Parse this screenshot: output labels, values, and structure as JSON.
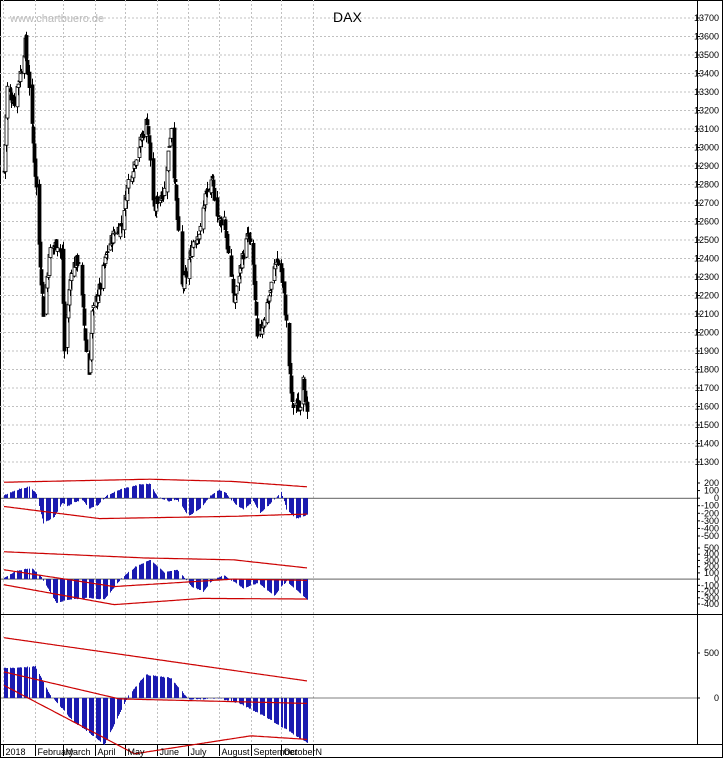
{
  "watermark": "www.chartbuero.de",
  "colors": {
    "background": "#ffffff",
    "candle": "#000000",
    "histogram": "#1a1ab0",
    "bands": "#cc0000",
    "grid": "#c0c0c0"
  },
  "chart_data": [
    {
      "type": "candlestick",
      "title": "DAX",
      "ylim": [
        11300,
        13700
      ],
      "grid": true,
      "yticks": [
        "13700",
        "13600",
        "13500",
        "13400",
        "13300",
        "13200",
        "13100",
        "13000",
        "12900",
        "12800",
        "12700",
        "12600",
        "12500",
        "12400",
        "12300",
        "12200",
        "12100",
        "12000",
        "11900",
        "11800",
        "11700",
        "11600",
        "11500",
        "11400",
        "11300"
      ],
      "x_month_labels": [
        "2018",
        "February",
        "March",
        "April",
        "May",
        "June",
        "July",
        "August",
        "September",
        "October",
        "N"
      ],
      "weekly_close_path": [
        [
          "2018-01-02",
          12870
        ],
        [
          "2018-01-05",
          13320
        ],
        [
          "2018-01-12",
          13250
        ],
        [
          "2018-01-19",
          13430
        ],
        [
          "2018-01-23",
          13560
        ],
        [
          "2018-01-26",
          13340
        ],
        [
          "2018-02-02",
          12780
        ],
        [
          "2018-02-06",
          12380
        ],
        [
          "2018-02-09",
          12110
        ],
        [
          "2018-02-16",
          12450
        ],
        [
          "2018-02-23",
          12480
        ],
        [
          "2018-02-28",
          12420
        ],
        [
          "2018-03-02",
          11900
        ],
        [
          "2018-03-09",
          12350
        ],
        [
          "2018-03-16",
          12390
        ],
        [
          "2018-03-23",
          11900
        ],
        [
          "2018-03-26",
          11780
        ],
        [
          "2018-03-29",
          12100
        ],
        [
          "2018-04-06",
          12250
        ],
        [
          "2018-04-13",
          12440
        ],
        [
          "2018-04-20",
          12540
        ],
        [
          "2018-04-27",
          12580
        ],
        [
          "2018-05-04",
          12820
        ],
        [
          "2018-05-11",
          12960
        ],
        [
          "2018-05-18",
          13080
        ],
        [
          "2018-05-22",
          13150
        ],
        [
          "2018-05-29",
          12650
        ],
        [
          "2018-06-01",
          12720
        ],
        [
          "2018-06-08",
          12770
        ],
        [
          "2018-06-15",
          13120
        ],
        [
          "2018-06-20",
          12700
        ],
        [
          "2018-06-25",
          12250
        ],
        [
          "2018-06-29",
          12310
        ],
        [
          "2018-07-06",
          12500
        ],
        [
          "2018-07-13",
          12550
        ],
        [
          "2018-07-18",
          12740
        ],
        [
          "2018-07-25",
          12800
        ],
        [
          "2018-08-01",
          12600
        ],
        [
          "2018-08-06",
          12620
        ],
        [
          "2018-08-10",
          12420
        ],
        [
          "2018-08-15",
          12170
        ],
        [
          "2018-08-22",
          12380
        ],
        [
          "2018-08-29",
          12530
        ],
        [
          "2018-09-03",
          12360
        ],
        [
          "2018-09-07",
          11960
        ],
        [
          "2018-09-12",
          12040
        ],
        [
          "2018-09-19",
          12200
        ],
        [
          "2018-09-26",
          12400
        ],
        [
          "2018-10-01",
          12330
        ],
        [
          "2018-10-05",
          12050
        ],
        [
          "2018-10-11",
          11600
        ],
        [
          "2018-10-15",
          11620
        ],
        [
          "2018-10-18",
          11580
        ],
        [
          "2018-10-22",
          11780
        ],
        [
          "2018-10-26",
          11540
        ]
      ]
    },
    {
      "type": "histogram",
      "ylim": [
        -500,
        200
      ],
      "yticks": [
        "200",
        "100",
        "0",
        "-100",
        "-200",
        "-300",
        "-400",
        "-500"
      ],
      "histogram_path": [
        [
          "2018-01-02",
          40
        ],
        [
          "2018-01-17",
          120
        ],
        [
          "2018-01-26",
          150
        ],
        [
          "2018-02-02",
          60
        ],
        [
          "2018-02-09",
          -330
        ],
        [
          "2018-02-20",
          -250
        ],
        [
          "2018-02-28",
          -60
        ],
        [
          "2018-03-05",
          -110
        ],
        [
          "2018-03-12",
          -50
        ],
        [
          "2018-03-20",
          -30
        ],
        [
          "2018-03-26",
          -140
        ],
        [
          "2018-04-04",
          -90
        ],
        [
          "2018-04-13",
          40
        ],
        [
          "2018-04-27",
          120
        ],
        [
          "2018-05-14",
          180
        ],
        [
          "2018-05-25",
          190
        ],
        [
          "2018-06-01",
          20
        ],
        [
          "2018-06-12",
          -40
        ],
        [
          "2018-06-21",
          -20
        ],
        [
          "2018-07-01",
          -240
        ],
        [
          "2018-07-13",
          -140
        ],
        [
          "2018-07-23",
          30
        ],
        [
          "2018-08-01",
          110
        ],
        [
          "2018-08-07",
          80
        ],
        [
          "2018-08-16",
          -80
        ],
        [
          "2018-08-24",
          -150
        ],
        [
          "2018-09-03",
          -40
        ],
        [
          "2018-09-10",
          -200
        ],
        [
          "2018-09-21",
          -60
        ],
        [
          "2018-10-01",
          80
        ],
        [
          "2018-10-05",
          -150
        ],
        [
          "2018-10-15",
          -270
        ],
        [
          "2018-10-26",
          -220
        ]
      ],
      "upper_band": [
        [
          "2018-01-02",
          210
        ],
        [
          "2018-05-25",
          250
        ],
        [
          "2018-08-15",
          220
        ],
        [
          "2018-10-26",
          150
        ]
      ],
      "lower_band": [
        [
          "2018-01-02",
          -110
        ],
        [
          "2018-04-06",
          -270
        ],
        [
          "2018-08-15",
          -240
        ],
        [
          "2018-10-26",
          -210
        ]
      ]
    },
    {
      "type": "histogram",
      "ylim": [
        -400,
        500
      ],
      "yticks": [
        "500",
        "400",
        "300",
        "200",
        "100",
        "0",
        "-100",
        "-200",
        "-300",
        "-400"
      ],
      "histogram_path": [
        [
          "2018-01-02",
          20
        ],
        [
          "2018-01-14",
          130
        ],
        [
          "2018-01-28",
          180
        ],
        [
          "2018-02-06",
          60
        ],
        [
          "2018-02-22",
          -380
        ],
        [
          "2018-03-06",
          -330
        ],
        [
          "2018-03-26",
          -300
        ],
        [
          "2018-04-10",
          -330
        ],
        [
          "2018-04-27",
          10
        ],
        [
          "2018-05-10",
          200
        ],
        [
          "2018-05-25",
          310
        ],
        [
          "2018-06-08",
          110
        ],
        [
          "2018-06-21",
          150
        ],
        [
          "2018-07-04",
          -120
        ],
        [
          "2018-07-16",
          -200
        ],
        [
          "2018-07-26",
          0
        ],
        [
          "2018-08-06",
          60
        ],
        [
          "2018-08-24",
          -150
        ],
        [
          "2018-09-08",
          -60
        ],
        [
          "2018-09-24",
          -270
        ],
        [
          "2018-10-05",
          -40
        ],
        [
          "2018-10-15",
          -170
        ],
        [
          "2018-10-26",
          -330
        ]
      ],
      "upper_band": [
        [
          "2018-01-02",
          440
        ],
        [
          "2018-05-20",
          340
        ],
        [
          "2018-08-15",
          310
        ],
        [
          "2018-10-26",
          180
        ]
      ],
      "lower_band": [
        [
          "2018-01-02",
          -90
        ],
        [
          "2018-04-20",
          -410
        ],
        [
          "2018-07-15",
          -310
        ],
        [
          "2018-10-26",
          -320
        ]
      ],
      "mid_band": [
        [
          "2018-01-02",
          150
        ],
        [
          "2018-04-20",
          -120
        ],
        [
          "2018-08-15",
          0
        ],
        [
          "2018-10-26",
          -20
        ]
      ]
    },
    {
      "type": "histogram",
      "ylim": [
        -700,
        800
      ],
      "yticks": [
        "500",
        "0"
      ],
      "histogram_path": [
        [
          "2018-01-02",
          330
        ],
        [
          "2018-02-01",
          350
        ],
        [
          "2018-02-15",
          50
        ],
        [
          "2018-03-10",
          -250
        ],
        [
          "2018-04-10",
          -520
        ],
        [
          "2018-05-05",
          50
        ],
        [
          "2018-05-20",
          260
        ],
        [
          "2018-06-15",
          220
        ],
        [
          "2018-07-01",
          -20
        ],
        [
          "2018-07-31",
          0
        ],
        [
          "2018-08-20",
          -60
        ],
        [
          "2018-09-14",
          -200
        ],
        [
          "2018-10-26",
          -500
        ]
      ],
      "upper_band": [
        [
          "2018-01-02",
          670
        ],
        [
          "2018-10-26",
          190
        ]
      ],
      "lower_band": [
        [
          "2018-01-02",
          140
        ],
        [
          "2018-05-10",
          -620
        ],
        [
          "2018-09-01",
          -420
        ],
        [
          "2018-10-26",
          -460
        ]
      ],
      "mid_band": [
        [
          "2018-01-02",
          290
        ],
        [
          "2018-04-25",
          -10
        ],
        [
          "2018-10-26",
          -60
        ]
      ]
    }
  ]
}
